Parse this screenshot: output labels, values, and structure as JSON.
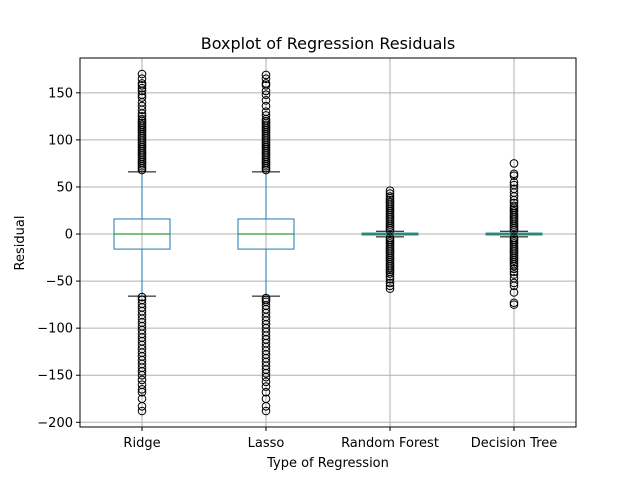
{
  "chart_data": {
    "type": "boxplot",
    "title": "Boxplot of Regression Residuals",
    "xlabel": "Type of Regression",
    "ylabel": "Residual",
    "ylim": [
      -205,
      187
    ],
    "yticks": [
      -200,
      -150,
      -100,
      -50,
      0,
      50,
      100,
      150
    ],
    "grid": true,
    "categories": [
      "Ridge",
      "Lasso",
      "Random Forest",
      "Decision Tree"
    ],
    "box_color": "#1f77b4",
    "median_color": "#2ca02c",
    "boxes": [
      {
        "label": "Ridge",
        "q1": -16,
        "median": 0,
        "q3": 16,
        "whisker_low": -66,
        "whisker_high": 66,
        "outliers_high": [
          68,
          70,
          72,
          74,
          76,
          78,
          80,
          82,
          84,
          86,
          88,
          90,
          92,
          94,
          96,
          98,
          100,
          102,
          104,
          106,
          108,
          110,
          112,
          114,
          116,
          118,
          120,
          122,
          125,
          128,
          132,
          136,
          140,
          145,
          148,
          152,
          155,
          158,
          160,
          165,
          170
        ],
        "outliers_low": [
          -67,
          -70,
          -74,
          -78,
          -82,
          -86,
          -90,
          -94,
          -98,
          -102,
          -106,
          -110,
          -114,
          -118,
          -122,
          -126,
          -130,
          -134,
          -138,
          -142,
          -146,
          -150,
          -155,
          -160,
          -165,
          -168,
          -175,
          -183,
          -188
        ]
      },
      {
        "label": "Lasso",
        "q1": -16,
        "median": 0,
        "q3": 16,
        "whisker_low": -66,
        "whisker_high": 66,
        "outliers_high": [
          68,
          70,
          72,
          74,
          76,
          78,
          80,
          82,
          84,
          86,
          88,
          90,
          92,
          94,
          96,
          98,
          100,
          102,
          104,
          106,
          108,
          110,
          112,
          114,
          116,
          118,
          120,
          122,
          126,
          130,
          136,
          142,
          148,
          152,
          158,
          160,
          165,
          169
        ],
        "outliers_low": [
          -68,
          -70,
          -72,
          -76,
          -80,
          -84,
          -88,
          -92,
          -96,
          -100,
          -104,
          -108,
          -112,
          -116,
          -120,
          -124,
          -128,
          -132,
          -136,
          -140,
          -144,
          -148,
          -152,
          -157,
          -162,
          -168,
          -175,
          -183,
          -188
        ]
      },
      {
        "label": "Random Forest",
        "q1": -1,
        "median": 0,
        "q3": 1,
        "whisker_low": -3,
        "whisker_high": 3,
        "outliers_high": [
          4,
          6,
          8,
          10,
          12,
          14,
          16,
          18,
          20,
          22,
          24,
          26,
          28,
          30,
          32,
          34,
          36,
          38,
          40,
          43,
          46
        ],
        "outliers_low": [
          -4,
          -6,
          -8,
          -10,
          -12,
          -14,
          -16,
          -18,
          -20,
          -22,
          -24,
          -26,
          -28,
          -30,
          -32,
          -34,
          -36,
          -38,
          -40,
          -42,
          -45,
          -48,
          -52,
          -55,
          -58
        ]
      },
      {
        "label": "Decision Tree",
        "q1": -1,
        "median": 0,
        "q3": 1,
        "whisker_low": -3,
        "whisker_high": 3,
        "outliers_high": [
          4,
          6,
          8,
          10,
          12,
          14,
          16,
          18,
          20,
          22,
          24,
          26,
          28,
          30,
          33,
          36,
          40,
          44,
          48,
          52,
          55,
          62,
          64,
          75
        ],
        "outliers_low": [
          -4,
          -6,
          -8,
          -10,
          -12,
          -14,
          -16,
          -18,
          -20,
          -22,
          -24,
          -26,
          -28,
          -30,
          -32,
          -34,
          -37,
          -40,
          -43,
          -47,
          -52,
          -55,
          -62,
          -73,
          -75
        ]
      }
    ]
  }
}
